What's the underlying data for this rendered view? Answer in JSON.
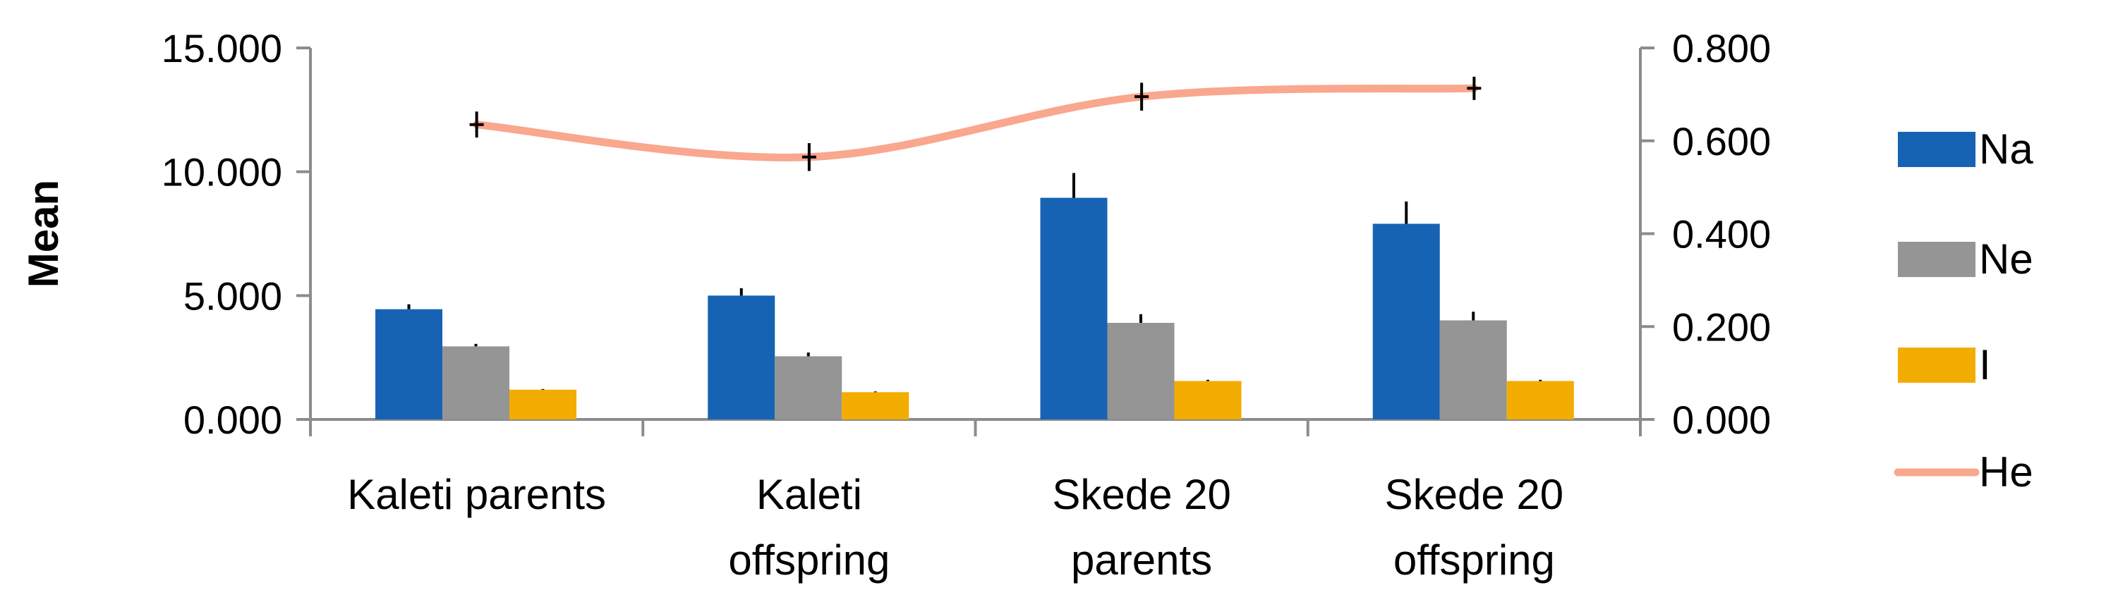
{
  "chart_data": {
    "type": "bar",
    "title": "",
    "xlabel": "",
    "ylabel": "Mean",
    "y2label": "",
    "ylim": [
      0,
      15
    ],
    "y2lim": [
      0,
      0.8
    ],
    "yticks": [
      "0.000",
      "5.000",
      "10.000",
      "15.000"
    ],
    "y2ticks": [
      "0.000",
      "0.200",
      "0.400",
      "0.600",
      "0.800"
    ],
    "categories": [
      [
        "Kaleti parents"
      ],
      [
        "Kaleti",
        "offspring"
      ],
      [
        "Skede 20",
        "parents"
      ],
      [
        "Skede 20",
        "offspring"
      ]
    ],
    "series": [
      {
        "name": "Na",
        "type": "bar",
        "axis": "left",
        "color": "#1763B3",
        "values": [
          4.45,
          5.0,
          8.95,
          7.9
        ],
        "errors": [
          0.2,
          0.3,
          1.0,
          0.9
        ]
      },
      {
        "name": "Ne",
        "type": "bar",
        "axis": "left",
        "color": "#959595",
        "values": [
          2.95,
          2.55,
          3.9,
          4.0
        ],
        "errors": [
          0.1,
          0.15,
          0.35,
          0.35
        ]
      },
      {
        "name": "I",
        "type": "bar",
        "axis": "left",
        "color": "#F3AC00",
        "values": [
          1.2,
          1.1,
          1.55,
          1.55
        ],
        "errors": [
          0.03,
          0.03,
          0.05,
          0.05
        ]
      },
      {
        "name": "He",
        "type": "line",
        "axis": "right",
        "color": "#F9A78E",
        "values": [
          0.635,
          0.565,
          0.695,
          0.713
        ],
        "errors": [
          0.028,
          0.03,
          0.03,
          0.025
        ]
      }
    ],
    "legend": "right",
    "grid": false
  }
}
